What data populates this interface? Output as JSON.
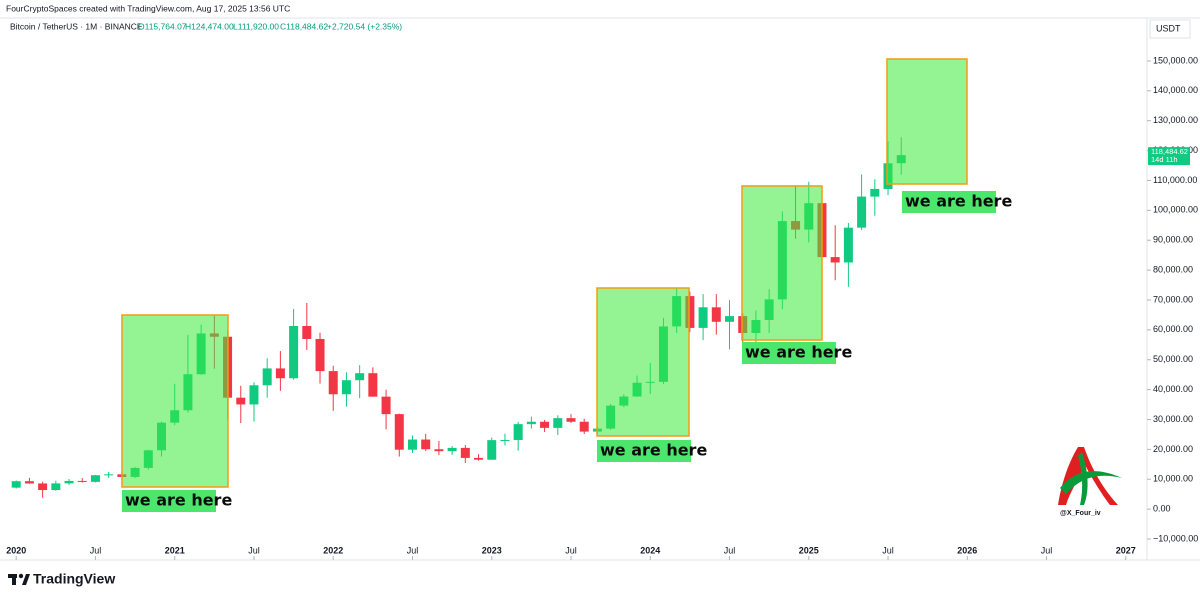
{
  "header": {
    "credit": "FourCryptoSpaces created with TradingView.com, Aug 17, 2025 13:56 UTC",
    "symbol": "Bitcoin / TetherUS · 1M · BINANCE",
    "ohlc": [
      "O115,764.07",
      "H124,474.00",
      "L111,920.00",
      "C118,484.62"
    ],
    "change": "+2,720.54 (+2.35%)"
  },
  "currency": "USDT",
  "annotations": [
    "we are here",
    "we are here",
    "we are here",
    "we are here"
  ],
  "watermark": "@X_Four_iv",
  "brand": "TradingView",
  "chart_data": {
    "type": "candlestick",
    "up_color": "#0ecb81",
    "down_color": "#f23645",
    "x": [
      "2020-01",
      "2020-02",
      "2020-03",
      "2020-04",
      "2020-05",
      "2020-06",
      "2020-07",
      "2020-08",
      "2020-09",
      "2020-10",
      "2020-11",
      "2020-12",
      "2021-01",
      "2021-02",
      "2021-03",
      "2021-04",
      "2021-05",
      "2021-06",
      "2021-07",
      "2021-08",
      "2021-09",
      "2021-10",
      "2021-11",
      "2021-12",
      "2022-01",
      "2022-02",
      "2022-03",
      "2022-04",
      "2022-05",
      "2022-06",
      "2022-07",
      "2022-08",
      "2022-09",
      "2022-10",
      "2022-11",
      "2022-12",
      "2023-01",
      "2023-02",
      "2023-03",
      "2023-04",
      "2023-05",
      "2023-06",
      "2023-07",
      "2023-08",
      "2023-09",
      "2023-10",
      "2023-11",
      "2023-12",
      "2024-01",
      "2024-02",
      "2024-03",
      "2024-04",
      "2024-05",
      "2024-06",
      "2024-07",
      "2024-08",
      "2024-09",
      "2024-10",
      "2024-11",
      "2024-12",
      "2025-01",
      "2025-02",
      "2025-03",
      "2025-04",
      "2025-05",
      "2025-06",
      "2025-07",
      "2025-08"
    ],
    "open": [
      7200,
      9350,
      8600,
      6400,
      8630,
      9450,
      9140,
      11350,
      11650,
      10780,
      13800,
      19700,
      28950,
      33100,
      45150,
      58800,
      57700,
      37300,
      35050,
      41450,
      47100,
      43800,
      61300,
      56950,
      46200,
      38450,
      43150,
      45500,
      37650,
      31800,
      19900,
      23300,
      20050,
      19400,
      20500,
      17150,
      16550,
      23100,
      23150,
      28450,
      29250,
      27200,
      30450,
      29250,
      25950,
      26950,
      34650,
      37700,
      42300,
      42600,
      61150,
      71300,
      60650,
      67550,
      62700,
      64600,
      58950,
      63300,
      70200,
      96400,
      93550,
      102400,
      84350,
      82550,
      94200,
      104600,
      107150,
      115764.07
    ],
    "high": [
      9600,
      10500,
      9200,
      9500,
      10070,
      10400,
      11450,
      12470,
      12070,
      14100,
      19900,
      29300,
      41950,
      58350,
      61800,
      64850,
      59600,
      41300,
      42450,
      50500,
      52900,
      67000,
      69000,
      59050,
      47990,
      45800,
      48200,
      47450,
      40000,
      31950,
      24650,
      25200,
      22800,
      21100,
      21450,
      18400,
      23950,
      25250,
      29200,
      31000,
      29850,
      31400,
      31800,
      30250,
      27500,
      35200,
      38450,
      44700,
      48950,
      64000,
      73800,
      72800,
      71950,
      71950,
      70000,
      65600,
      66500,
      73600,
      99600,
      108350,
      109600,
      102750,
      95000,
      95750,
      111980,
      110400,
      123200,
      124474
    ],
    "low": [
      6900,
      8500,
      3800,
      6150,
      8100,
      8900,
      8950,
      10500,
      9900,
      10400,
      13200,
      17600,
      28100,
      32300,
      44950,
      47000,
      30000,
      28800,
      29300,
      37300,
      39600,
      43300,
      53250,
      42000,
      32900,
      34300,
      37150,
      37600,
      26700,
      17600,
      18800,
      19500,
      18100,
      18200,
      15450,
      16250,
      16500,
      21350,
      19550,
      26950,
      25800,
      24800,
      28850,
      25150,
      24900,
      26550,
      34100,
      37600,
      38550,
      41900,
      59000,
      59200,
      56550,
      58400,
      53500,
      49000,
      52550,
      58900,
      66850,
      90500,
      89250,
      78250,
      76600,
      74400,
      93400,
      98200,
      105100,
      111920
    ],
    "close": [
      9350,
      8600,
      6400,
      8630,
      9450,
      9140,
      11350,
      11650,
      10780,
      13800,
      19700,
      28950,
      33100,
      45150,
      58800,
      57700,
      37300,
      35050,
      41450,
      47100,
      43800,
      61300,
      56950,
      46200,
      38450,
      43150,
      45500,
      37650,
      31800,
      19900,
      23300,
      20050,
      19400,
      20500,
      17150,
      16550,
      23100,
      23150,
      28450,
      29250,
      27200,
      30450,
      29250,
      25950,
      26950,
      34650,
      37700,
      42300,
      42600,
      61150,
      71300,
      60650,
      67550,
      62700,
      64600,
      58950,
      63300,
      70200,
      96400,
      93550,
      102400,
      84350,
      82550,
      94200,
      104600,
      107150,
      115750,
      118484.62
    ],
    "last_price_label": "118,484.62",
    "countdown": "14d 11h",
    "ylim": [
      -13000,
      157000
    ],
    "yticks": [
      {
        "value": -10000,
        "label": "−10,000.00"
      },
      {
        "value": 0,
        "label": "0.00"
      },
      {
        "value": 10000,
        "label": "10,000.00"
      },
      {
        "value": 20000,
        "label": "20,000.00"
      },
      {
        "value": 30000,
        "label": "30,000.00"
      },
      {
        "value": 40000,
        "label": "40,000.00"
      },
      {
        "value": 50000,
        "label": "50,000.00"
      },
      {
        "value": 60000,
        "label": "60,000.00"
      },
      {
        "value": 70000,
        "label": "70,000.00"
      },
      {
        "value": 80000,
        "label": "80,000.00"
      },
      {
        "value": 90000,
        "label": "90,000.00"
      },
      {
        "value": 100000,
        "label": "100,000.00"
      },
      {
        "value": 110000,
        "label": "110,000.00"
      },
      {
        "value": 120000,
        "label": "120,000.00"
      },
      {
        "value": 130000,
        "label": "130,000.00"
      },
      {
        "value": 140000,
        "label": "140,000.00"
      },
      {
        "value": 150000,
        "label": "150,000.00"
      }
    ],
    "xlim": [
      "2019-12",
      "2027-02"
    ],
    "xticks": [
      {
        "value": "2020-01",
        "label": "2020"
      },
      {
        "value": "2020-07",
        "label": "Jul"
      },
      {
        "value": "2021-01",
        "label": "2021"
      },
      {
        "value": "2021-07",
        "label": "Jul"
      },
      {
        "value": "2022-01",
        "label": "2022"
      },
      {
        "value": "2022-07",
        "label": "Jul"
      },
      {
        "value": "2023-01",
        "label": "2023"
      },
      {
        "value": "2023-07",
        "label": "Jul"
      },
      {
        "value": "2024-01",
        "label": "2024"
      },
      {
        "value": "2024-07",
        "label": "Jul"
      },
      {
        "value": "2025-01",
        "label": "2025"
      },
      {
        "value": "2025-07",
        "label": "Jul"
      },
      {
        "value": "2026-01",
        "label": "2026"
      },
      {
        "value": "2026-07",
        "label": "Jul"
      },
      {
        "value": "2027-01",
        "label": "2027"
      }
    ],
    "grid": false
  }
}
